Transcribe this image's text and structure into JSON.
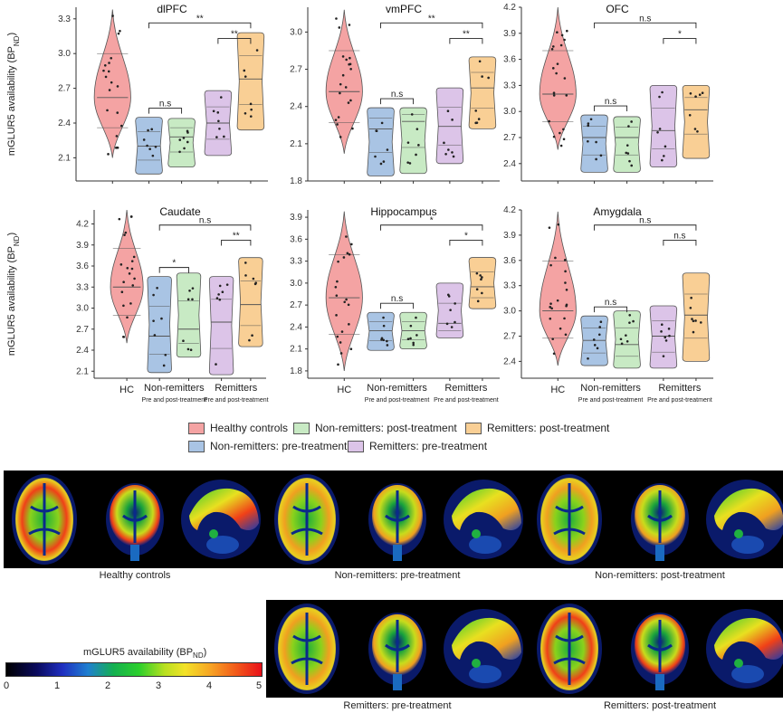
{
  "chart_data": [
    {
      "type": "violin",
      "title": "dlPFC",
      "ylabel": "mGLUR5 availability (BP_ND)",
      "ylim": [
        1.9,
        3.4
      ],
      "yticks": [
        2.1,
        2.4,
        2.7,
        3.0,
        3.3
      ],
      "categories": [
        "HC",
        "Non-remitters pre",
        "Non-remitters post",
        "Remitters pre",
        "Remitters post"
      ],
      "medians": [
        2.62,
        2.2,
        2.28,
        2.4,
        2.78
      ],
      "ranges": [
        [
          2.1,
          3.38
        ],
        [
          1.96,
          2.45
        ],
        [
          2.02,
          2.44
        ],
        [
          2.12,
          2.68
        ],
        [
          2.34,
          3.18
        ]
      ],
      "significance": [
        {
          "from": 1,
          "to": 2,
          "label": "n.s"
        },
        {
          "from": 3,
          "to": 4,
          "label": "**"
        },
        {
          "from": 1,
          "to": 4,
          "label": "**"
        }
      ]
    },
    {
      "type": "violin",
      "title": "vmPFC",
      "ylim": [
        1.8,
        3.2
      ],
      "yticks": [
        1.8,
        2.1,
        2.4,
        2.7,
        3.0
      ],
      "categories": [
        "HC",
        "Non-remitters pre",
        "Non-remitters post",
        "Remitters pre",
        "Remitters post"
      ],
      "medians": [
        2.52,
        2.22,
        2.28,
        2.24,
        2.55
      ],
      "ranges": [
        [
          2.02,
          3.18
        ],
        [
          1.84,
          2.39
        ],
        [
          1.86,
          2.39
        ],
        [
          1.94,
          2.55
        ],
        [
          2.22,
          2.8
        ]
      ],
      "significance": [
        {
          "from": 1,
          "to": 2,
          "label": "n.s"
        },
        {
          "from": 3,
          "to": 4,
          "label": "**"
        },
        {
          "from": 1,
          "to": 4,
          "label": "**"
        }
      ]
    },
    {
      "type": "violin",
      "title": "OFC",
      "ylim": [
        2.2,
        4.2
      ],
      "yticks": [
        2.4,
        2.7,
        3.0,
        3.3,
        3.6,
        3.9,
        4.2
      ],
      "categories": [
        "HC",
        "Non-remitters pre",
        "Non-remitters post",
        "Remitters pre",
        "Remitters post"
      ],
      "medians": [
        3.2,
        2.7,
        2.7,
        2.78,
        3.02
      ],
      "ranges": [
        [
          2.56,
          4.2
        ],
        [
          2.3,
          2.96
        ],
        [
          2.3,
          2.94
        ],
        [
          2.36,
          3.3
        ],
        [
          2.46,
          3.3
        ]
      ],
      "significance": [
        {
          "from": 1,
          "to": 2,
          "label": "n.s"
        },
        {
          "from": 3,
          "to": 4,
          "label": "*"
        },
        {
          "from": 1,
          "to": 4,
          "label": "n.s"
        }
      ]
    },
    {
      "type": "violin",
      "title": "Caudate",
      "ylim": [
        2.0,
        4.4
      ],
      "yticks": [
        2.1,
        2.4,
        2.7,
        3.0,
        3.3,
        3.6,
        3.9,
        4.2
      ],
      "categories": [
        "HC",
        "Non-remitters pre",
        "Non-remitters post",
        "Remitters pre",
        "Remitters post"
      ],
      "medians": [
        3.3,
        2.6,
        2.7,
        2.8,
        3.05
      ],
      "ranges": [
        [
          2.5,
          4.4
        ],
        [
          2.08,
          3.45
        ],
        [
          2.3,
          3.5
        ],
        [
          2.05,
          3.45
        ],
        [
          2.45,
          3.72
        ]
      ],
      "significance": [
        {
          "from": 1,
          "to": 2,
          "label": "*"
        },
        {
          "from": 3,
          "to": 4,
          "label": "**"
        },
        {
          "from": 1,
          "to": 4,
          "label": "n.s"
        }
      ]
    },
    {
      "type": "violin",
      "title": "Hippocampus",
      "ylim": [
        1.7,
        4.0
      ],
      "yticks": [
        1.8,
        2.1,
        2.4,
        2.7,
        3.0,
        3.3,
        3.6,
        3.9
      ],
      "categories": [
        "HC",
        "Non-remitters pre",
        "Non-remitters post",
        "Remitters pre",
        "Remitters post"
      ],
      "medians": [
        2.8,
        2.35,
        2.35,
        2.45,
        2.95
      ],
      "ranges": [
        [
          1.8,
          3.98
        ],
        [
          2.08,
          2.6
        ],
        [
          2.1,
          2.6
        ],
        [
          2.25,
          3.0
        ],
        [
          2.65,
          3.35
        ]
      ],
      "significance": [
        {
          "from": 1,
          "to": 2,
          "label": "n.s"
        },
        {
          "from": 3,
          "to": 4,
          "label": "*"
        },
        {
          "from": 1,
          "to": 4,
          "label": "*"
        }
      ]
    },
    {
      "type": "violin",
      "title": "Amygdala",
      "ylim": [
        2.2,
        4.2
      ],
      "yticks": [
        2.4,
        2.7,
        3.0,
        3.3,
        3.6,
        3.9,
        4.2
      ],
      "categories": [
        "HC",
        "Non-remitters pre",
        "Non-remitters post",
        "Remitters pre",
        "Remitters post"
      ],
      "medians": [
        3.0,
        2.65,
        2.6,
        2.7,
        2.95
      ],
      "ranges": [
        [
          2.35,
          4.18
        ],
        [
          2.35,
          2.94
        ],
        [
          2.32,
          3.0
        ],
        [
          2.32,
          3.06
        ],
        [
          2.4,
          3.45
        ]
      ],
      "significance": [
        {
          "from": 1,
          "to": 2,
          "label": "n.s"
        },
        {
          "from": 3,
          "to": 4,
          "label": "n.s"
        },
        {
          "from": 1,
          "to": 4,
          "label": "n.s"
        }
      ]
    }
  ],
  "axis": {
    "ylabel_left": "mGLUR5 availability (BP",
    "ylabel_sub": "ND",
    "ylabel_close": ")",
    "x_hc": "HC",
    "x_nonrem": "Non-remitters",
    "x_rem": "Remitters",
    "x_sub": "Pre and post-treatment"
  },
  "legend": {
    "items": [
      {
        "label": "Healthy controls",
        "color": "#f4a3a3"
      },
      {
        "label": "Non-remitters: post-treatment",
        "color": "#c8eac4"
      },
      {
        "label": "Remitters: post-treatment",
        "color": "#f9cf95"
      },
      {
        "label": "Non-remitters: pre-treatment",
        "color": "#a9c4e4"
      },
      {
        "label": "Remitters: pre-treatment",
        "color": "#dcc4e8"
      }
    ]
  },
  "colors": {
    "hc": "#f4a3a3",
    "nonrem_pre": "#a9c4e4",
    "nonrem_post": "#c8eac4",
    "rem_pre": "#dcc4e8",
    "rem_post": "#f9cf95"
  },
  "scans": {
    "captions": [
      "Healthy controls",
      "Non-remitters: pre-treatment",
      "Non-remitters: post-treatment",
      "Remitters: pre-treatment",
      "Remitters: post-treatment"
    ]
  },
  "colorbar": {
    "title_main": "mGLUR5 availability (BP",
    "title_sub": "ND",
    "title_close": ")",
    "ticks": [
      "0",
      "1",
      "2",
      "3",
      "4",
      "5"
    ]
  }
}
